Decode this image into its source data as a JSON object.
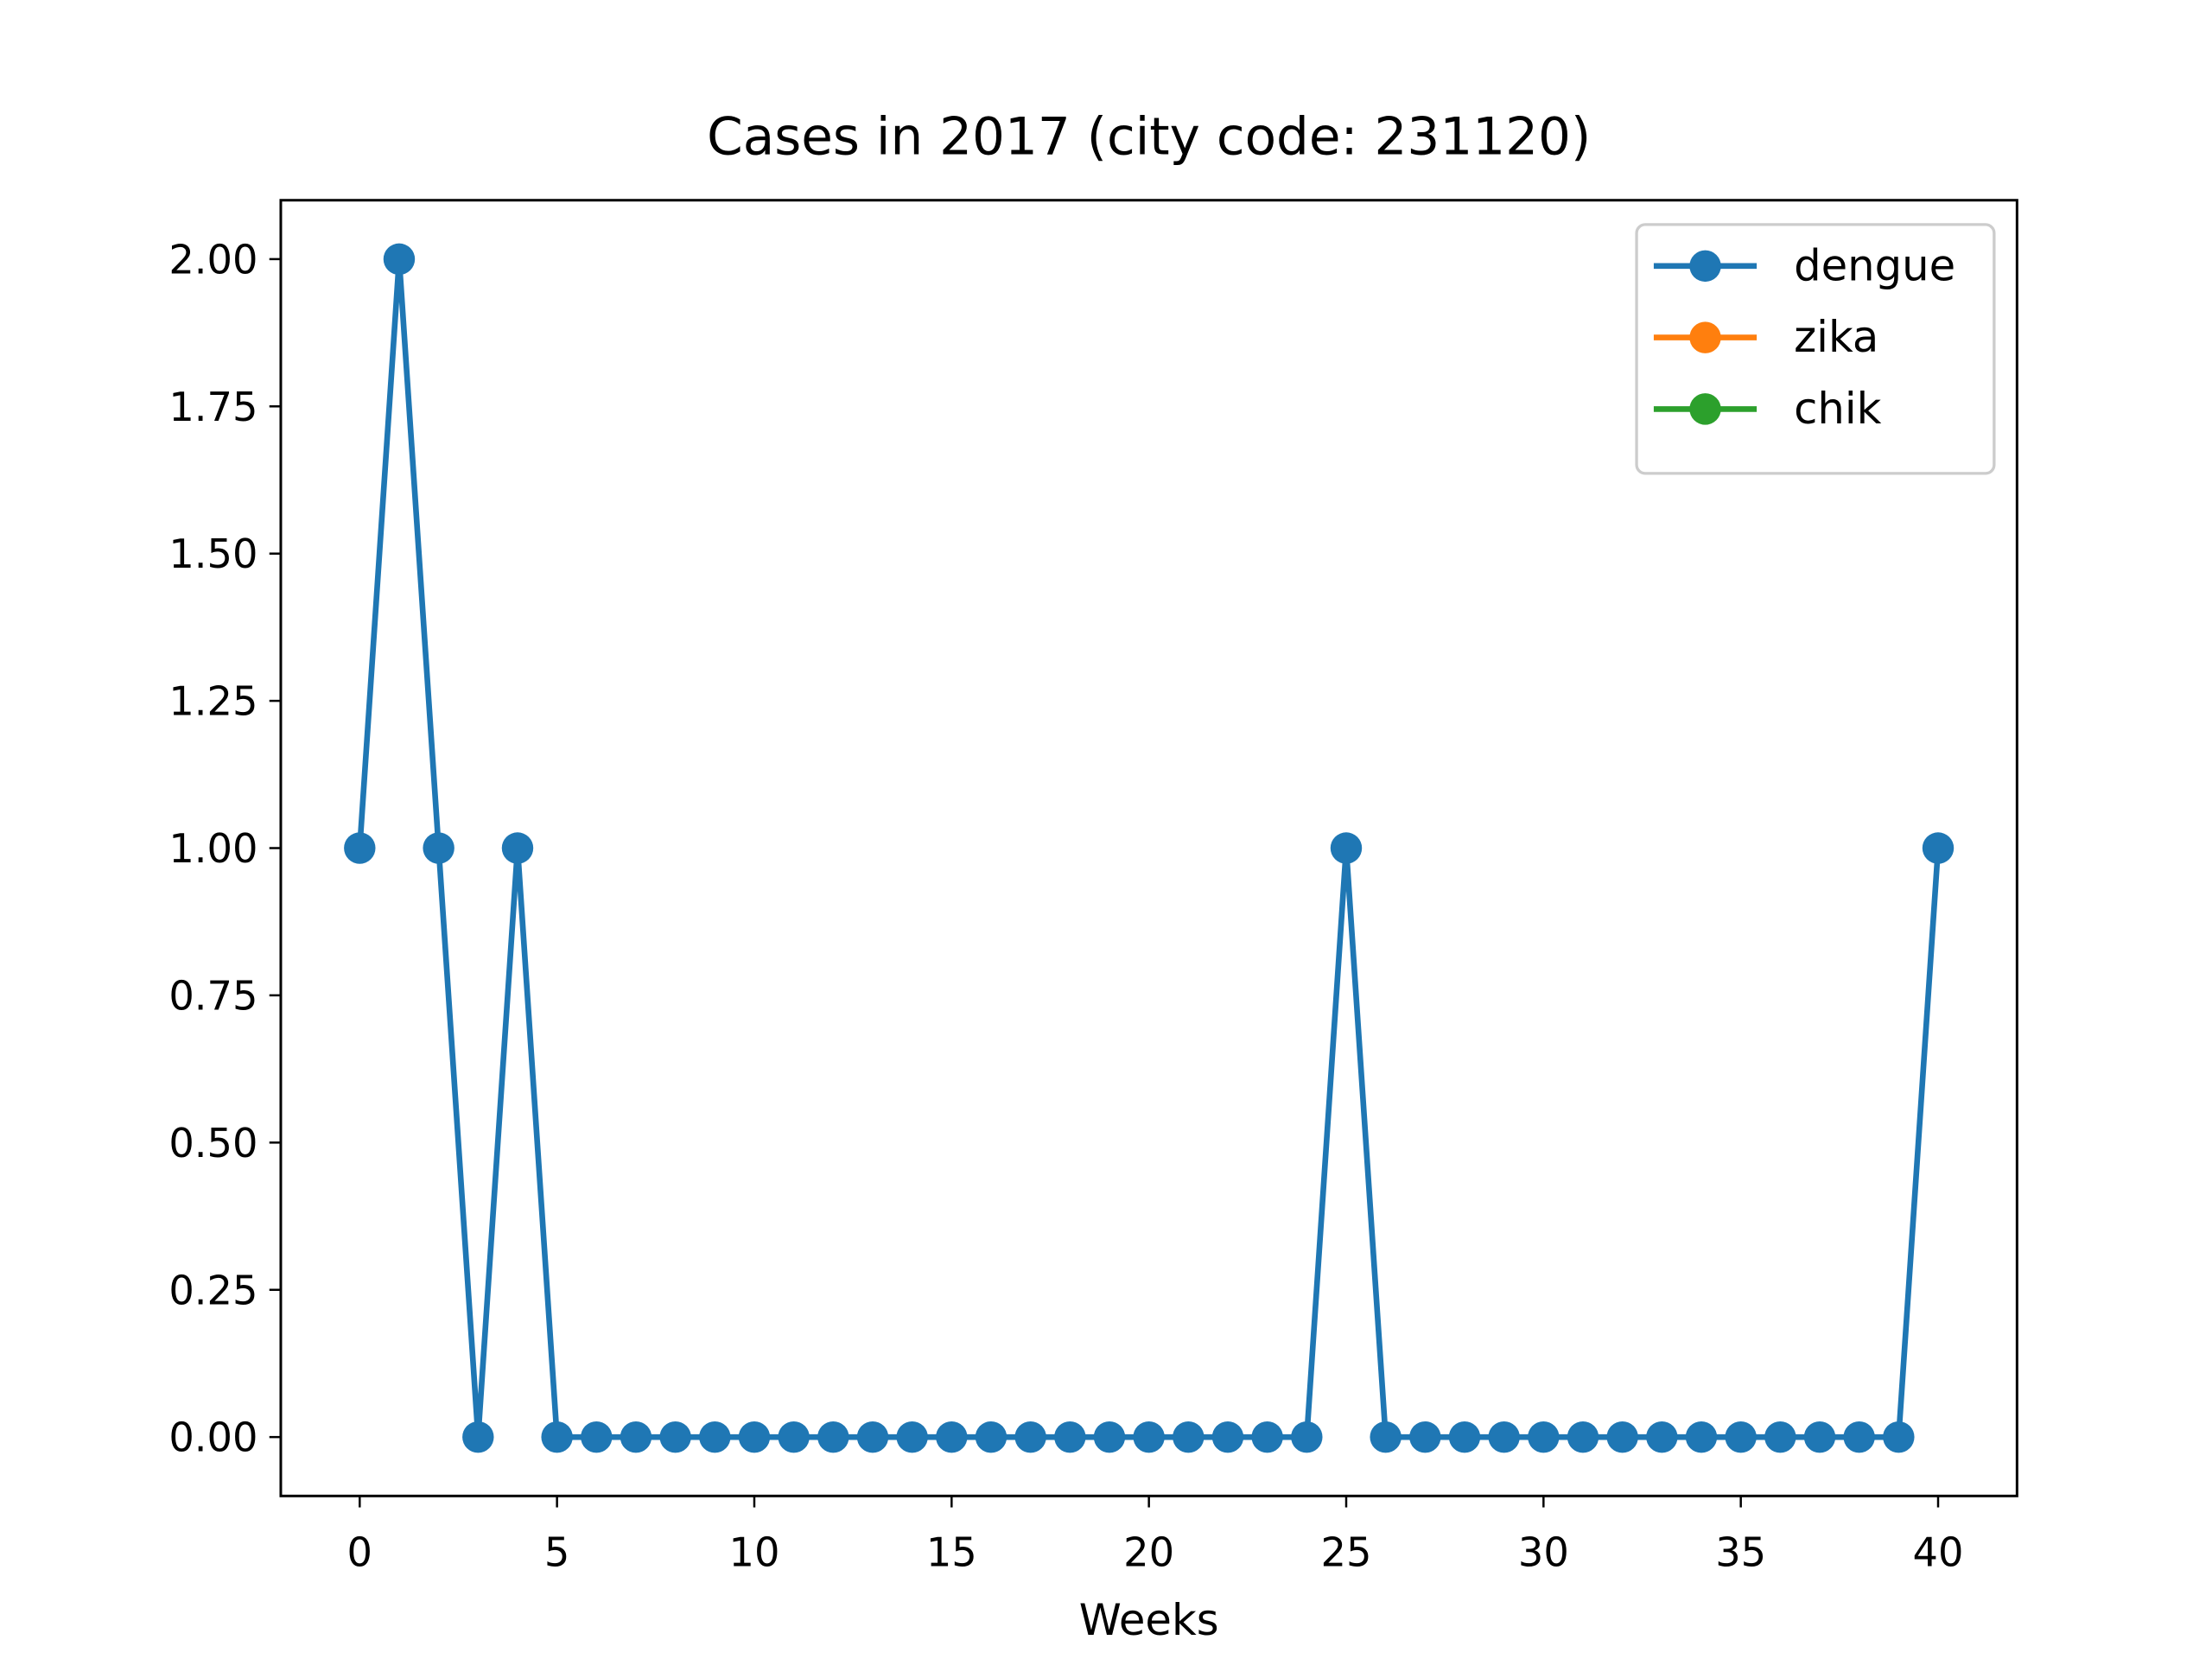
{
  "chart_data": {
    "type": "line",
    "title": "Cases in 2017 (city code: 231120)",
    "xlabel": "Weeks",
    "x": [
      0,
      1,
      2,
      3,
      4,
      5,
      6,
      7,
      8,
      9,
      10,
      11,
      12,
      13,
      14,
      15,
      16,
      17,
      18,
      19,
      20,
      21,
      22,
      23,
      24,
      25,
      26,
      27,
      28,
      29,
      30,
      31,
      32,
      33,
      34,
      35,
      36,
      37,
      38,
      39,
      40
    ],
    "series": [
      {
        "name": "dengue",
        "color": "#1f77b4",
        "values": [
          1,
          2,
          1,
          0,
          1,
          0,
          0,
          0,
          0,
          0,
          0,
          0,
          0,
          0,
          0,
          0,
          0,
          0,
          0,
          0,
          0,
          0,
          0,
          0,
          0,
          1,
          0,
          0,
          0,
          0,
          0,
          0,
          0,
          0,
          0,
          0,
          0,
          0,
          0,
          0,
          1
        ]
      },
      {
        "name": "zika",
        "color": "#ff7f0e",
        "values": [
          null,
          null,
          null,
          null,
          null,
          null,
          null,
          null,
          null,
          null,
          null,
          null,
          null,
          null,
          null,
          null,
          null,
          null,
          null,
          null,
          null,
          null,
          null,
          null,
          null,
          null,
          null,
          null,
          null,
          null,
          null,
          null,
          null,
          null,
          null,
          null,
          null,
          null,
          null,
          null,
          null
        ]
      },
      {
        "name": "chik",
        "color": "#2ca02c",
        "values": [
          null,
          null,
          null,
          null,
          null,
          null,
          null,
          null,
          null,
          null,
          null,
          null,
          null,
          null,
          null,
          null,
          null,
          null,
          null,
          null,
          null,
          null,
          null,
          null,
          null,
          null,
          null,
          null,
          null,
          null,
          null,
          null,
          null,
          null,
          null,
          null,
          null,
          null,
          null,
          null,
          null
        ]
      }
    ],
    "xlim": [
      -2,
      42
    ],
    "xticks": [
      0,
      5,
      10,
      15,
      20,
      25,
      30,
      35,
      40
    ],
    "ylim": [
      -0.1,
      2.1
    ],
    "yticks": [
      {
        "value": 0,
        "label": "0.00"
      },
      {
        "value": 0.25,
        "label": "0.25"
      },
      {
        "value": 0.5,
        "label": "0.50"
      },
      {
        "value": 0.75,
        "label": "0.75"
      },
      {
        "value": 1,
        "label": "1.00"
      },
      {
        "value": 1.25,
        "label": "1.25"
      },
      {
        "value": 1.5,
        "label": "1.50"
      },
      {
        "value": 1.75,
        "label": "1.75"
      },
      {
        "value": 2,
        "label": "2.00"
      }
    ],
    "legend": "upper right",
    "grid": false
  }
}
